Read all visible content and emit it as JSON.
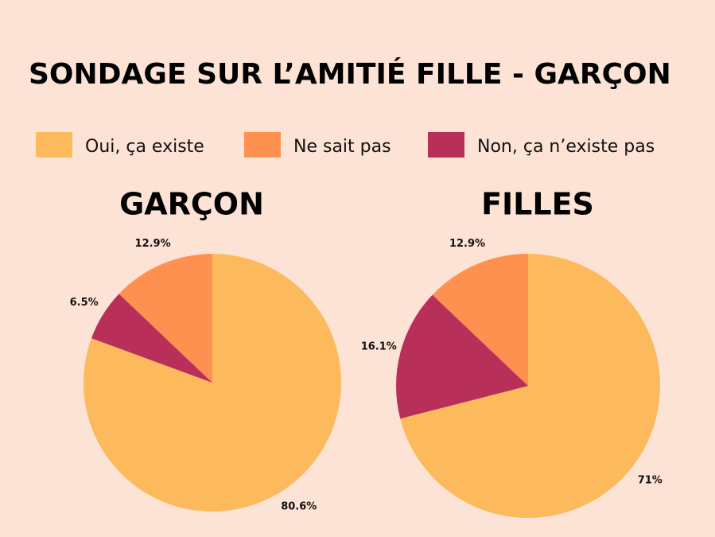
{
  "title": "SONDAGE SUR L’AMITIÉ FILLE - GARÇON",
  "chart_data": [
    {
      "type": "pie",
      "title": "GARÇON",
      "categories": [
        "Oui, ça existe",
        "Non, ça n’existe pas",
        "Ne sait pas"
      ],
      "values": [
        80.6,
        6.5,
        12.9
      ],
      "value_labels": [
        "80.6%",
        "6.5%",
        "12.9%"
      ],
      "colors": [
        "#fdba5c",
        "#b8305a",
        "#fe914f"
      ]
    },
    {
      "type": "pie",
      "title": "FILLES",
      "categories": [
        "Oui, ça existe",
        "Non, ça n’existe pas",
        "Ne sait pas"
      ],
      "values": [
        71,
        16.1,
        12.9
      ],
      "value_labels": [
        "71%",
        "16.1%",
        "12.9%"
      ],
      "colors": [
        "#fdba5c",
        "#b8305a",
        "#fe914f"
      ]
    }
  ]
}
